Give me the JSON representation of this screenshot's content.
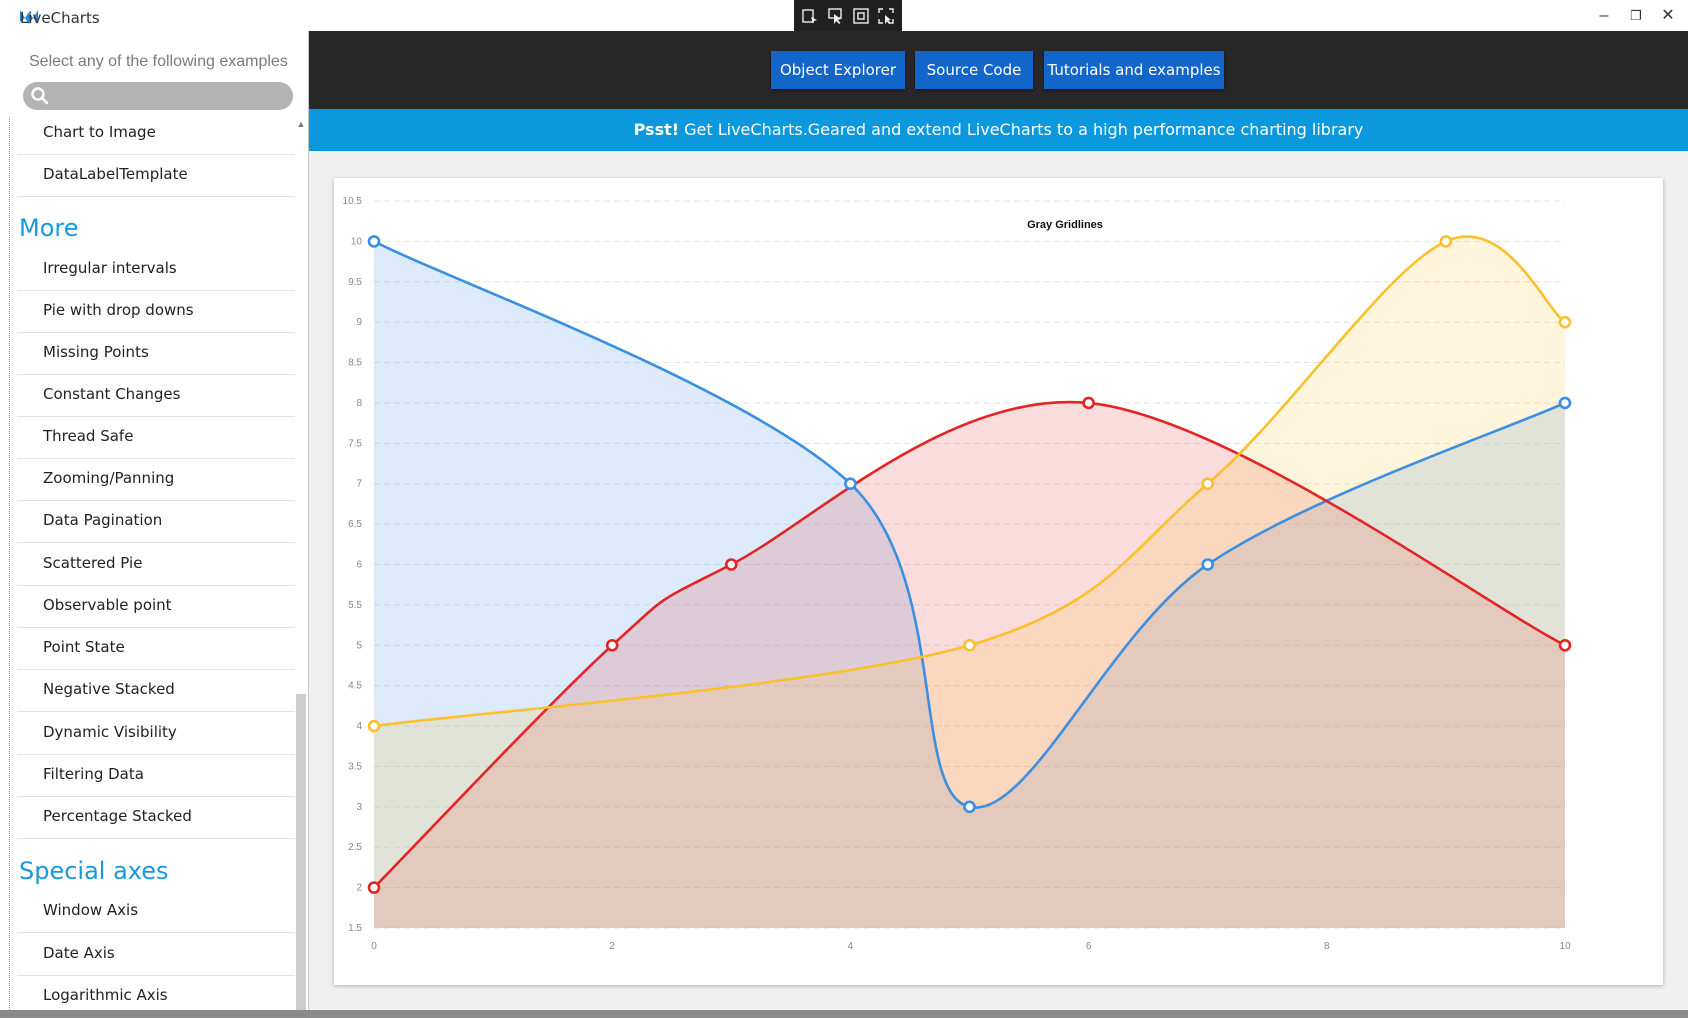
{
  "window": {
    "app_title": "LiveCharts",
    "controls": {
      "minimize": "–",
      "restore": "❐",
      "close": "✕"
    }
  },
  "sidebar": {
    "hint": "Select any of the following examples",
    "search_placeholder": "",
    "top_items": [
      "Chart to Image",
      "DataLabelTemplate"
    ],
    "sections": [
      {
        "title": "More",
        "items": [
          "Irregular intervals",
          "Pie with drop downs",
          "Missing Points",
          "Constant Changes",
          "Thread Safe",
          "Zooming/Panning",
          "Data Pagination",
          "Scattered Pie",
          "Observable point",
          "Point State",
          "Negative Stacked",
          "Dynamic Visibility",
          "Filtering Data",
          "Percentage Stacked"
        ]
      },
      {
        "title": "Special axes",
        "items": [
          "Window Axis",
          "Date Axis",
          "Logarithmic Axis"
        ]
      }
    ]
  },
  "toolbar": {
    "buttons": [
      "Object Explorer",
      "Source Code",
      "Tutorials and examples"
    ]
  },
  "banner": {
    "bold": "Psst!",
    "text": " Get LiveCharts.Geared and extend LiveCharts to a high performance charting library"
  },
  "chart_data": {
    "type": "area",
    "title": "Gray Gridlines",
    "xlabel": "",
    "ylabel": "",
    "xlim": [
      0,
      10
    ],
    "ylim": [
      1.5,
      10.5
    ],
    "x_ticks": [
      0,
      2,
      4,
      6,
      8,
      10
    ],
    "y_ticks": [
      1.5,
      2,
      2.5,
      3,
      3.5,
      4,
      4.5,
      5,
      5.5,
      6,
      6.5,
      7,
      7.5,
      8,
      8.5,
      9,
      9.5,
      10,
      10.5
    ],
    "grid": true,
    "series": [
      {
        "color": "#3b8fe0",
        "fill": "rgba(100,160,235,0.22)",
        "points": [
          [
            0,
            10
          ],
          [
            4,
            7
          ],
          [
            5,
            3
          ],
          [
            7,
            6
          ],
          [
            10,
            8
          ]
        ]
      },
      {
        "color": "#e32424",
        "fill": "rgba(232,80,80,0.20)",
        "points": [
          [
            0,
            2
          ],
          [
            2,
            5
          ],
          [
            3,
            6
          ],
          [
            6,
            8
          ],
          [
            10,
            5
          ]
        ]
      },
      {
        "color": "#fbc02d",
        "fill": "rgba(252,200,60,0.18)",
        "points": [
          [
            0,
            4
          ],
          [
            5,
            5
          ],
          [
            7,
            7
          ],
          [
            9,
            10
          ],
          [
            10,
            9
          ]
        ]
      }
    ]
  }
}
